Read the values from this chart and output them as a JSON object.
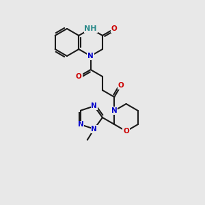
{
  "bg_color": "#e8e8e8",
  "bond_color": "#1a1a1a",
  "N_color": "#0000cc",
  "O_color": "#cc0000",
  "H_color": "#2a8a8a",
  "text_size": 7.5,
  "lw": 1.5
}
